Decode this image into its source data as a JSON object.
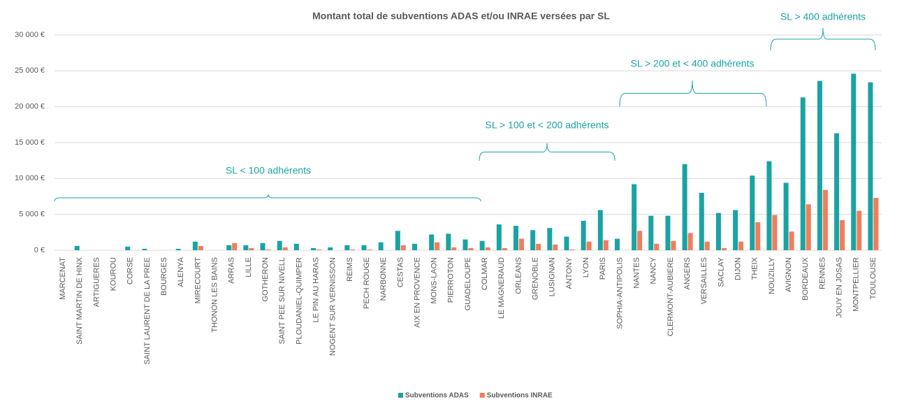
{
  "chart_data": {
    "type": "bar",
    "title": "Montant total de subventions ADAS et/ou INRAE versées par SL",
    "categories": [
      "MARCENAT",
      "SAINT MARTIN DE HINX",
      "ARTIGUERES",
      "KOUROU",
      "CORSE",
      "SAINT LAURENT DE LA PREE",
      "BOURGES",
      "ALENYA",
      "MIRECOURT",
      "THONON LES BAINS",
      "ARRAS",
      "LILLE",
      "GOTHERON",
      "SAINT PEE SUR NIVELL",
      "PLOUDANIEL-QUIMPER",
      "LE PIN AU HARAS",
      "NOGENT SUR VERNISSON",
      "REIMS",
      "PECH ROUGE",
      "NARBONNE",
      "CESTAS",
      "AIX EN PROVENCE",
      "MONS-LAON",
      "PIERROTON",
      "GUADELOUPE",
      "COLMAR",
      "LE MAGNERAUD",
      "ORLEANS",
      "GRENOBLE",
      "LUSIGNAN",
      "ANTONY",
      "LYON",
      "PARIS",
      "SOPHIA-ANTIPOLIS",
      "NANTES",
      "NANCY",
      "CLERMONT-AUBIERE",
      "ANGERS",
      "VERSAILLES",
      "SACLAY",
      "DIJON",
      "THEIX",
      "NOUZILLY",
      "AVIGNON",
      "BORDEAUX",
      "RENNES",
      "JOUY EN JOSAS",
      "MONTPELLIER",
      "TOULOUSE"
    ],
    "series": [
      {
        "name": "Subventions ADAS",
        "color": "#1aa3a3",
        "values": [
          0,
          600,
          0,
          0,
          500,
          200,
          0,
          200,
          1200,
          0,
          700,
          700,
          1000,
          1300,
          900,
          300,
          400,
          700,
          700,
          1100,
          2700,
          900,
          2200,
          2300,
          1500,
          1300,
          3600,
          3400,
          2800,
          3100,
          1900,
          4100,
          5600,
          1600,
          9200,
          4800,
          4800,
          12000,
          8000,
          5200,
          5600,
          10400,
          12400,
          9400,
          21300,
          23600,
          16300,
          24600,
          23400
        ]
      },
      {
        "name": "Subventions INRAE",
        "color": "#ef7e5c",
        "values": [
          0,
          0,
          0,
          0,
          0,
          0,
          0,
          0,
          600,
          0,
          1000,
          300,
          100,
          400,
          0,
          100,
          0,
          100,
          100,
          0,
          700,
          0,
          1100,
          400,
          300,
          400,
          300,
          1600,
          900,
          800,
          100,
          1200,
          1400,
          0,
          2700,
          900,
          1300,
          2400,
          1200,
          300,
          1200,
          3900,
          4900,
          2600,
          6400,
          8400,
          4200,
          5500,
          7300
        ]
      }
    ],
    "ylim": [
      0,
      30000
    ],
    "yticks": [
      {
        "value": 0,
        "label": "0 €"
      },
      {
        "value": 5000,
        "label": "5 000 €"
      },
      {
        "value": 10000,
        "label": "10 000 €"
      },
      {
        "value": 15000,
        "label": "15 000 €"
      },
      {
        "value": 20000,
        "label": "20 000 €"
      },
      {
        "value": 25000,
        "label": "25 000 €"
      },
      {
        "value": 30000,
        "label": "30 000 €"
      }
    ],
    "grid": true,
    "annotations": [
      "SL < 100 adhérents",
      "SL > 100 et < 200 adhérents",
      "SL > 200 et < 400 adhérents",
      "SL > 400 adhérents"
    ]
  }
}
